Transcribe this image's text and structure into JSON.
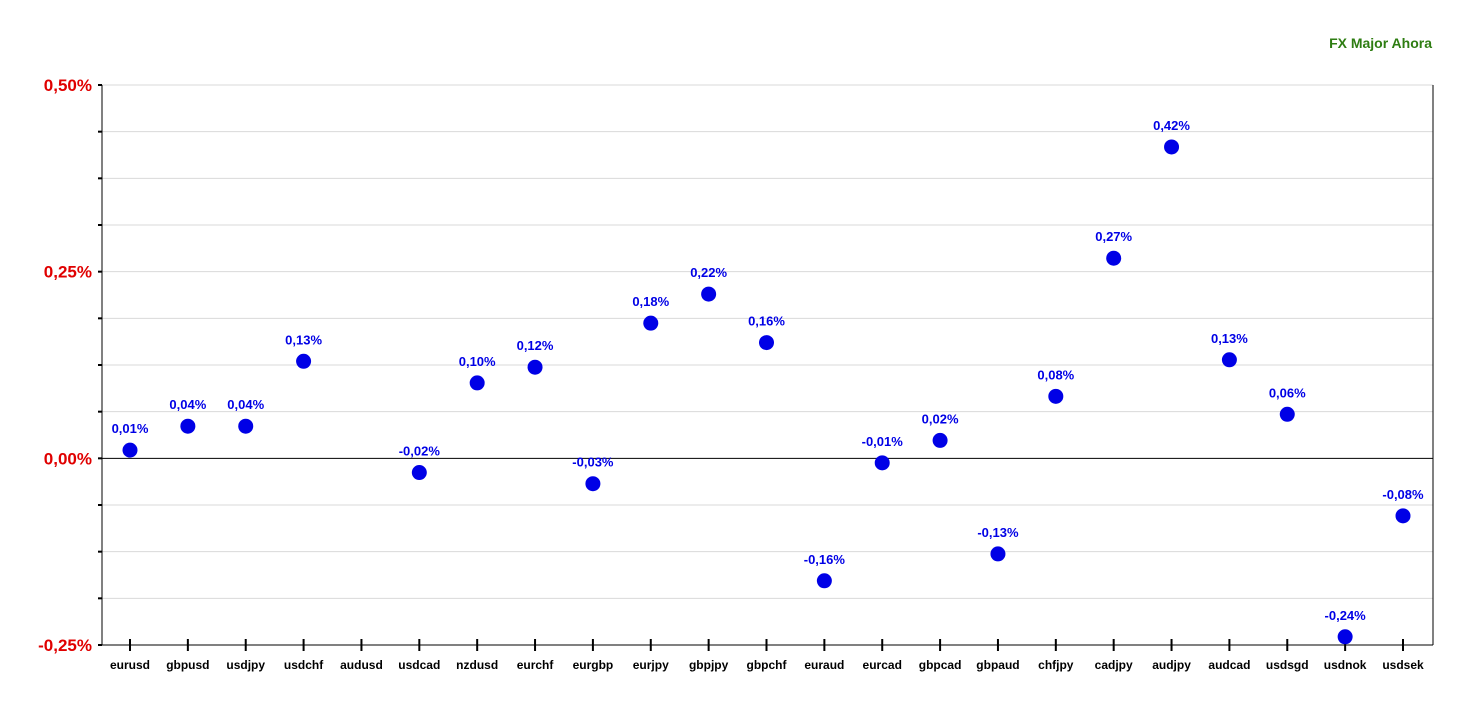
{
  "chart_data": {
    "type": "scatter",
    "title": "FX Major Ahora",
    "xlabel": "",
    "ylabel": "",
    "ylim": [
      -0.25,
      0.5
    ],
    "grid": true,
    "yticks": [
      {
        "value": 0.5,
        "label": "0,50%"
      },
      {
        "value": 0.25,
        "label": "0,25%"
      },
      {
        "value": 0.0,
        "label": "0,00%"
      },
      {
        "value": -0.25,
        "label": "-0,25%"
      }
    ],
    "categories": [
      "eurusd",
      "gbpusd",
      "usdjpy",
      "usdchf",
      "audusd",
      "usdcad",
      "nzdusd",
      "eurchf",
      "eurgbp",
      "eurjpy",
      "gbpjpy",
      "gbpchf",
      "euraud",
      "eurcad",
      "gbpcad",
      "gbpaud",
      "chfjpy",
      "cadjpy",
      "audjpy",
      "audcad",
      "usdsgd",
      "usdnok",
      "usdsek"
    ],
    "values": [
      0.011,
      0.043,
      0.043,
      0.13,
      null,
      -0.019,
      0.101,
      0.122,
      -0.034,
      0.181,
      0.22,
      0.155,
      -0.164,
      -0.006,
      0.024,
      -0.128,
      0.083,
      0.268,
      0.417,
      0.132,
      0.059,
      -0.239,
      -0.077
    ],
    "labels": [
      "0,01%",
      "0,04%",
      "0,04%",
      "0,13%",
      "",
      "-0,02%",
      "0,10%",
      "0,12%",
      "-0,03%",
      "0,18%",
      "0,22%",
      "0,16%",
      "-0,16%",
      "-0,01%",
      "0,02%",
      "-0,13%",
      "0,08%",
      "0,27%",
      "0,42%",
      "0,13%",
      "0,06%",
      "-0,24%",
      "-0,08%"
    ],
    "colors": {
      "point": "#0000e6",
      "label": "#0000e6",
      "ytick": "#e00000",
      "title": "#2e7d12",
      "grid": "#d9d9d9",
      "axis": "#000000"
    }
  }
}
